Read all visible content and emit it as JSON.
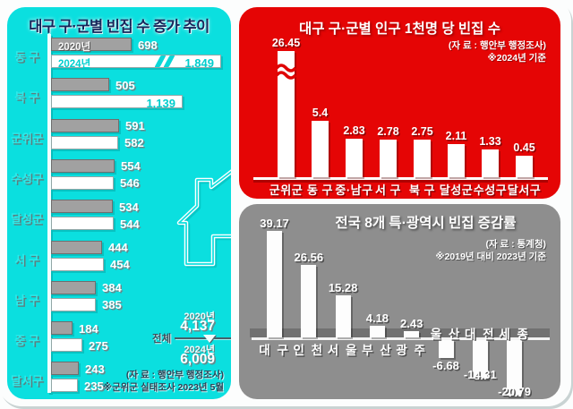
{
  "left_panel": {
    "title": "대구 구·군별 빈집 수 증가 추이",
    "source": [
      "(자  료 : 행안부 행정조사)",
      "※군위군 실태조사 2023년 5월"
    ],
    "total_annotation": {
      "label": "전체",
      "before": {
        "year": "2020년",
        "value": "4,137"
      },
      "after": {
        "year": "2024년",
        "value": "6,009"
      }
    }
  },
  "red_panel": {
    "title": "대구 구·군별 인구 1천명 당 빈집 수",
    "source": [
      "(자  료 : 행안부 행정조사)",
      "※2024년 기준"
    ]
  },
  "gray_panel": {
    "title": "전국 8개 특·광역시 빈집 증감률",
    "source": [
      "(자  료 : 통계청)",
      "※2019년 대비 2023년 기준"
    ]
  },
  "colors": {
    "left_bg": "#0bdfdf",
    "red_bg": "#e50505",
    "gray_bg": "#8e8e8e",
    "bar_2020": "#a1a1a1",
    "bar_2024": "#ffffff",
    "bar_white": "#ffffff"
  },
  "chart_data": [
    {
      "id": "daegu-vacant-homes-trend",
      "type": "bar",
      "orientation": "horizontal",
      "title": "대구 구·군별 빈집 수 증가 추이",
      "categories": [
        "동 구",
        "북 구",
        "군위군",
        "수성구",
        "달성군",
        "서 구",
        "남 구",
        "중 구",
        "달서구"
      ],
      "series": [
        {
          "name": "2020년",
          "color": "#a1a1a1",
          "values": [
            698,
            505,
            591,
            554,
            534,
            444,
            384,
            184,
            243
          ],
          "value_labels": [
            "698",
            "505",
            "591",
            "554",
            "534",
            "444",
            "384",
            "184",
            "243"
          ]
        },
        {
          "name": "2024년",
          "color": "#ffffff",
          "values": [
            1849,
            1139,
            582,
            546,
            544,
            454,
            385,
            275,
            235
          ],
          "value_labels": [
            "1,849",
            "1,139",
            "582",
            "546",
            "544",
            "454",
            "385",
            "275",
            "235"
          ]
        }
      ],
      "axis_break": {
        "series": "2024년",
        "category": "동 구"
      },
      "totals": {
        "2020년": "4,137",
        "2024년": "6,009"
      },
      "legend_position": "inside-first-bars",
      "grid": false
    },
    {
      "id": "daegu-vacant-per-1000",
      "type": "bar",
      "orientation": "vertical",
      "title": "대구 구·군별 인구 1천명 당 빈집 수",
      "categories": [
        "군위군",
        "동 구",
        "중·남구",
        "서 구",
        "북 구",
        "달성군",
        "수성구",
        "달서구"
      ],
      "values": [
        26.45,
        5.4,
        2.83,
        2.78,
        2.75,
        2.11,
        1.33,
        0.45
      ],
      "value_labels": [
        "26.45",
        "5.4",
        "2.83",
        "2.78",
        "2.75",
        "2.11",
        "1.33",
        "0.45"
      ],
      "bar_color": "#ffffff",
      "background": "#e50505",
      "axis_break": {
        "category": "군위군"
      },
      "grid": false
    },
    {
      "id": "metro-vacant-change-rate",
      "type": "bar",
      "orientation": "vertical",
      "title": "전국 8개 특·광역시 빈집 증감률",
      "categories": [
        "대 구",
        "인 천",
        "서 울",
        "부 산",
        "광 주",
        "울 산",
        "대 전",
        "세 종"
      ],
      "values": [
        39.17,
        26.56,
        15.28,
        4.18,
        2.43,
        -6.68,
        -14.31,
        -20.79
      ],
      "value_labels": [
        "39.17",
        "26.56",
        "15.28",
        "4.18",
        "2.43",
        "-6.68",
        "-14.31",
        "-20.79"
      ],
      "bar_color": "#fdfdfd",
      "background": "#8e8e8e",
      "grid": false
    }
  ]
}
